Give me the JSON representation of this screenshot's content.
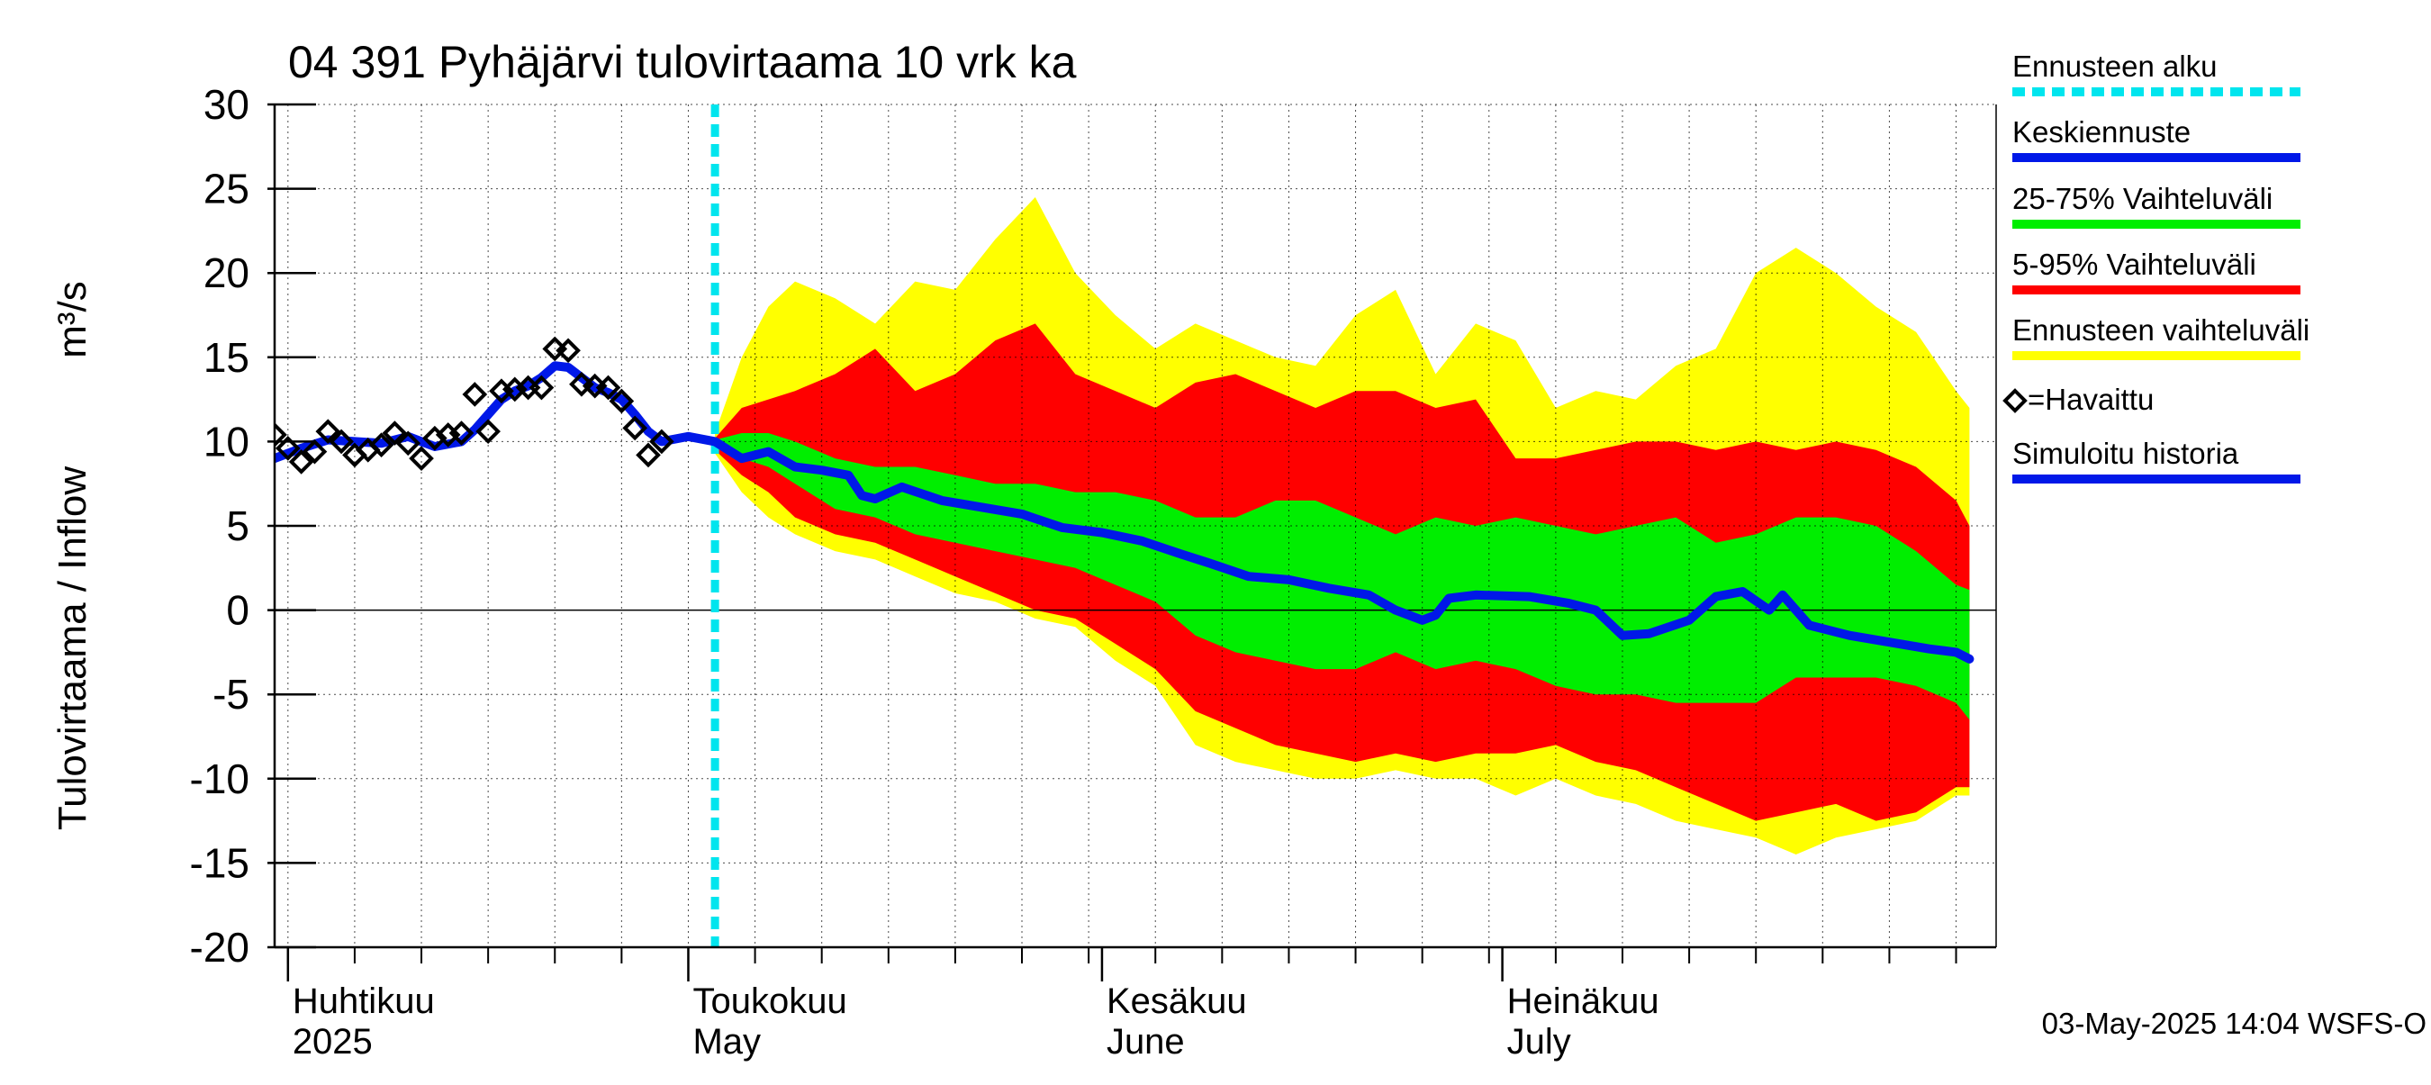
{
  "chart_data": {
    "type": "area",
    "title": "04 391 Pyhäjärvi tulovirtaama 10 vrk ka",
    "ylabel": "Tulovirtaama / Inflow",
    "yunit": "m³/s",
    "ylim": [
      -20,
      30
    ],
    "yticks": [
      30,
      25,
      20,
      15,
      10,
      5,
      0,
      -5,
      -10,
      -15,
      -20
    ],
    "xlim": [
      "2025-03-31",
      "2025-08-07"
    ],
    "grid": true,
    "legend_position": "right",
    "month_labels": [
      {
        "date": "2025-04-01",
        "fi": "Huhtikuu",
        "en": "2025"
      },
      {
        "date": "2025-05-01",
        "fi": "Toukokuu",
        "en": "May"
      },
      {
        "date": "2025-06-01",
        "fi": "Kesäkuu",
        "en": "June"
      },
      {
        "date": "2025-07-01",
        "fi": "Heinäkuu",
        "en": "July"
      }
    ],
    "forecast_start": "2025-05-03",
    "footer": "03-May-2025 14:04 WSFS-O",
    "legend": [
      {
        "key": "forecast_start",
        "label": "Ennusteen alku",
        "color": "#00e5ee",
        "style": "dotted"
      },
      {
        "key": "median",
        "label": "Keskiennuste",
        "color": "#0018e8",
        "style": "solid"
      },
      {
        "key": "band_25_75",
        "label": "25-75% Vaihteluväli",
        "color": "#00ee00",
        "style": "solid"
      },
      {
        "key": "band_5_95",
        "label": "5-95% Vaihteluväli",
        "color": "#ff0000",
        "style": "solid"
      },
      {
        "key": "band_full",
        "label": "Ennusteen vaihteluväli",
        "color": "#ffff00",
        "style": "solid"
      },
      {
        "key": "observed",
        "label": "=Havaittu",
        "color": "#000000",
        "style": "marker"
      },
      {
        "key": "history",
        "label": "Simuloitu historia",
        "color": "#0018e8",
        "style": "solid"
      }
    ],
    "colors": {
      "band_full": "#ffff00",
      "band_5_95": "#ff0000",
      "band_25_75": "#00ee00",
      "median": "#0018e8",
      "history": "#0018e8",
      "forecast_start": "#00e5ee",
      "grid": "#000000"
    },
    "observed": [
      {
        "x": "2025-03-31",
        "y": 10.4
      },
      {
        "x": "2025-04-01",
        "y": 9.6
      },
      {
        "x": "2025-04-02",
        "y": 8.8
      },
      {
        "x": "2025-04-03",
        "y": 9.4
      },
      {
        "x": "2025-04-04",
        "y": 10.6
      },
      {
        "x": "2025-04-05",
        "y": 10.0
      },
      {
        "x": "2025-04-06",
        "y": 9.2
      },
      {
        "x": "2025-04-07",
        "y": 9.5
      },
      {
        "x": "2025-04-08",
        "y": 9.8
      },
      {
        "x": "2025-04-09",
        "y": 10.5
      },
      {
        "x": "2025-04-10",
        "y": 9.9
      },
      {
        "x": "2025-04-11",
        "y": 9.0
      },
      {
        "x": "2025-04-12",
        "y": 10.2
      },
      {
        "x": "2025-04-13",
        "y": 10.4
      },
      {
        "x": "2025-04-14",
        "y": 10.5
      },
      {
        "x": "2025-04-15",
        "y": 12.8
      },
      {
        "x": "2025-04-16",
        "y": 10.6
      },
      {
        "x": "2025-04-17",
        "y": 13.0
      },
      {
        "x": "2025-04-18",
        "y": 13.1
      },
      {
        "x": "2025-04-19",
        "y": 13.2
      },
      {
        "x": "2025-04-20",
        "y": 13.2
      },
      {
        "x": "2025-04-21",
        "y": 15.5
      },
      {
        "x": "2025-04-22",
        "y": 15.4
      },
      {
        "x": "2025-04-23",
        "y": 13.4
      },
      {
        "x": "2025-04-24",
        "y": 13.3
      },
      {
        "x": "2025-04-25",
        "y": 13.2
      },
      {
        "x": "2025-04-26",
        "y": 12.4
      },
      {
        "x": "2025-04-27",
        "y": 10.8
      },
      {
        "x": "2025-04-28",
        "y": 9.2
      },
      {
        "x": "2025-04-29",
        "y": 10.0
      }
    ],
    "history": [
      {
        "x": "2025-03-31",
        "y": 9.0
      },
      {
        "x": "2025-04-02",
        "y": 9.6
      },
      {
        "x": "2025-04-04",
        "y": 10.1
      },
      {
        "x": "2025-04-06",
        "y": 10.0
      },
      {
        "x": "2025-04-08",
        "y": 9.9
      },
      {
        "x": "2025-04-10",
        "y": 10.3
      },
      {
        "x": "2025-04-12",
        "y": 9.7
      },
      {
        "x": "2025-04-14",
        "y": 10.0
      },
      {
        "x": "2025-04-15",
        "y": 10.7
      },
      {
        "x": "2025-04-16",
        "y": 11.6
      },
      {
        "x": "2025-04-17",
        "y": 12.5
      },
      {
        "x": "2025-04-18",
        "y": 13.0
      },
      {
        "x": "2025-04-19",
        "y": 13.3
      },
      {
        "x": "2025-04-20",
        "y": 13.8
      },
      {
        "x": "2025-04-21",
        "y": 14.5
      },
      {
        "x": "2025-04-22",
        "y": 14.4
      },
      {
        "x": "2025-04-23",
        "y": 13.8
      },
      {
        "x": "2025-04-24",
        "y": 13.2
      },
      {
        "x": "2025-04-25",
        "y": 12.9
      },
      {
        "x": "2025-04-26",
        "y": 12.5
      },
      {
        "x": "2025-04-27",
        "y": 11.6
      },
      {
        "x": "2025-04-28",
        "y": 10.6
      },
      {
        "x": "2025-04-29",
        "y": 10.0
      },
      {
        "x": "2025-05-01",
        "y": 10.3
      },
      {
        "x": "2025-05-03",
        "y": 10.0
      }
    ],
    "median": [
      {
        "x": "2025-05-03",
        "y": 10.0
      },
      {
        "x": "2025-05-05",
        "y": 9.0
      },
      {
        "x": "2025-05-07",
        "y": 9.4
      },
      {
        "x": "2025-05-09",
        "y": 8.5
      },
      {
        "x": "2025-05-11",
        "y": 8.3
      },
      {
        "x": "2025-05-13",
        "y": 8.0
      },
      {
        "x": "2025-05-14",
        "y": 6.8
      },
      {
        "x": "2025-05-15",
        "y": 6.6
      },
      {
        "x": "2025-05-17",
        "y": 7.3
      },
      {
        "x": "2025-05-20",
        "y": 6.5
      },
      {
        "x": "2025-05-23",
        "y": 6.1
      },
      {
        "x": "2025-05-26",
        "y": 5.7
      },
      {
        "x": "2025-05-29",
        "y": 4.9
      },
      {
        "x": "2025-06-01",
        "y": 4.6
      },
      {
        "x": "2025-06-04",
        "y": 4.1
      },
      {
        "x": "2025-06-07",
        "y": 3.3
      },
      {
        "x": "2025-06-09",
        "y": 2.8
      },
      {
        "x": "2025-06-12",
        "y": 2.0
      },
      {
        "x": "2025-06-15",
        "y": 1.8
      },
      {
        "x": "2025-06-18",
        "y": 1.3
      },
      {
        "x": "2025-06-21",
        "y": 0.9
      },
      {
        "x": "2025-06-23",
        "y": 0.0
      },
      {
        "x": "2025-06-25",
        "y": -0.6
      },
      {
        "x": "2025-06-26",
        "y": -0.3
      },
      {
        "x": "2025-06-27",
        "y": 0.7
      },
      {
        "x": "2025-06-29",
        "y": 0.9
      },
      {
        "x": "2025-07-03",
        "y": 0.8
      },
      {
        "x": "2025-07-06",
        "y": 0.4
      },
      {
        "x": "2025-07-08",
        "y": 0.0
      },
      {
        "x": "2025-07-10",
        "y": -1.5
      },
      {
        "x": "2025-07-12",
        "y": -1.4
      },
      {
        "x": "2025-07-15",
        "y": -0.6
      },
      {
        "x": "2025-07-17",
        "y": 0.8
      },
      {
        "x": "2025-07-19",
        "y": 1.1
      },
      {
        "x": "2025-07-21",
        "y": 0.0
      },
      {
        "x": "2025-07-22",
        "y": 0.9
      },
      {
        "x": "2025-07-24",
        "y": -0.9
      },
      {
        "x": "2025-07-27",
        "y": -1.5
      },
      {
        "x": "2025-07-30",
        "y": -1.9
      },
      {
        "x": "2025-08-02",
        "y": -2.3
      },
      {
        "x": "2025-08-04",
        "y": -2.5
      },
      {
        "x": "2025-08-05",
        "y": -2.9
      }
    ],
    "band_x": [
      "2025-05-03",
      "2025-05-05",
      "2025-05-07",
      "2025-05-09",
      "2025-05-12",
      "2025-05-15",
      "2025-05-18",
      "2025-05-21",
      "2025-05-24",
      "2025-05-27",
      "2025-05-30",
      "2025-06-02",
      "2025-06-05",
      "2025-06-08",
      "2025-06-11",
      "2025-06-14",
      "2025-06-17",
      "2025-06-20",
      "2025-06-23",
      "2025-06-26",
      "2025-06-29",
      "2025-07-02",
      "2025-07-05",
      "2025-07-08",
      "2025-07-11",
      "2025-07-14",
      "2025-07-17",
      "2025-07-20",
      "2025-07-23",
      "2025-07-26",
      "2025-07-29",
      "2025-08-01",
      "2025-08-04",
      "2025-08-05"
    ],
    "full_upper": [
      10.5,
      15.0,
      18.0,
      19.5,
      18.5,
      17.0,
      19.5,
      19.0,
      22.0,
      24.5,
      20.0,
      17.5,
      15.5,
      17.0,
      16.0,
      15.0,
      14.5,
      17.5,
      19.0,
      14.0,
      17.0,
      16.0,
      12.0,
      13.0,
      12.5,
      14.5,
      15.5,
      20.0,
      21.5,
      20.0,
      18.0,
      16.5,
      13.0,
      12.0
    ],
    "q95_upper": [
      10.2,
      12.0,
      12.5,
      13.0,
      14.0,
      15.5,
      13.0,
      14.0,
      16.0,
      17.0,
      14.0,
      13.0,
      12.0,
      13.5,
      14.0,
      13.0,
      12.0,
      13.0,
      13.0,
      12.0,
      12.5,
      9.0,
      9.0,
      9.5,
      10.0,
      10.0,
      9.5,
      10.0,
      9.5,
      10.0,
      9.5,
      8.5,
      6.5,
      5.0
    ],
    "q75_upper": [
      10.1,
      10.5,
      10.5,
      10.0,
      9.0,
      8.5,
      8.5,
      8.0,
      7.5,
      7.5,
      7.0,
      7.0,
      6.5,
      5.5,
      5.5,
      6.5,
      6.5,
      5.5,
      4.5,
      5.5,
      5.0,
      5.5,
      5.0,
      4.5,
      5.0,
      5.5,
      4.0,
      4.5,
      5.5,
      5.5,
      5.0,
      3.5,
      1.5,
      1.2
    ],
    "q25_lower": [
      9.8,
      9.0,
      8.5,
      7.5,
      6.0,
      5.5,
      4.5,
      4.0,
      3.5,
      3.0,
      2.5,
      1.5,
      0.5,
      -1.5,
      -2.5,
      -3.0,
      -3.5,
      -3.5,
      -2.5,
      -3.5,
      -3.0,
      -3.5,
      -4.5,
      -5.0,
      -5.0,
      -5.5,
      -5.5,
      -5.5,
      -4.0,
      -4.0,
      -4.0,
      -4.5,
      -5.5,
      -6.5
    ],
    "q5_lower": [
      9.5,
      8.0,
      7.0,
      5.5,
      4.5,
      4.0,
      3.0,
      2.0,
      1.0,
      0.0,
      -0.5,
      -2.0,
      -3.5,
      -6.0,
      -7.0,
      -8.0,
      -8.5,
      -9.0,
      -8.5,
      -9.0,
      -8.5,
      -8.5,
      -8.0,
      -9.0,
      -9.5,
      -10.5,
      -11.5,
      -12.5,
      -12.0,
      -11.5,
      -12.5,
      -12.0,
      -10.5,
      -10.5
    ],
    "full_lower": [
      9.3,
      7.0,
      5.5,
      4.5,
      3.5,
      3.0,
      2.0,
      1.0,
      0.5,
      -0.5,
      -1.0,
      -3.0,
      -4.5,
      -8.0,
      -9.0,
      -9.5,
      -10.0,
      -10.0,
      -9.5,
      -10.0,
      -10.0,
      -11.0,
      -10.0,
      -11.0,
      -11.5,
      -12.5,
      -13.0,
      -13.5,
      -14.5,
      -13.5,
      -13.0,
      -12.5,
      -11.0,
      -11.0
    ]
  }
}
